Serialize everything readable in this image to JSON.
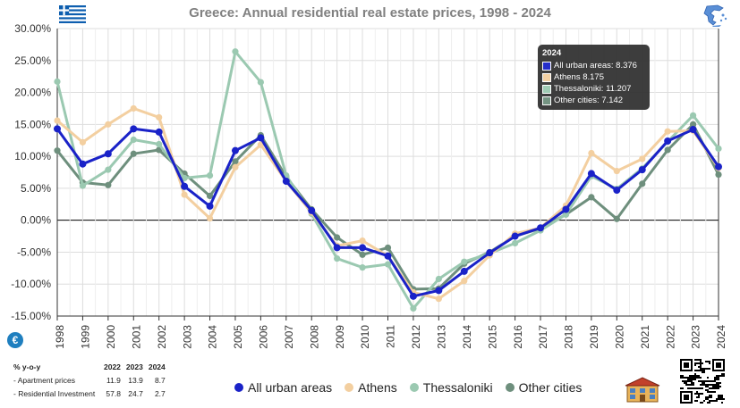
{
  "title": "Greece: Annual residential real estate prices, 1998 - 2024",
  "icons": {
    "flag": "greece-flag-icon",
    "map": "greece-map-icon",
    "info": "info-icon",
    "house": "house-icon",
    "qr": "qr-code-icon"
  },
  "info_glyph": "€",
  "chart_data": {
    "type": "line",
    "x": [
      1998,
      1999,
      2000,
      2001,
      2002,
      2003,
      2004,
      2005,
      2006,
      2007,
      2008,
      2009,
      2010,
      2011,
      2012,
      2013,
      2014,
      2015,
      2016,
      2017,
      2018,
      2019,
      2020,
      2021,
      2022,
      2023,
      2024
    ],
    "xticklabels": [
      "1998",
      "1999",
      "2000",
      "2001",
      "2002",
      "2003",
      "2004",
      "2005",
      "2006",
      "2007",
      "2008",
      "2009",
      "2010",
      "2011",
      "2012",
      "2013",
      "2014",
      "2015",
      "2016",
      "2017",
      "2018",
      "2019",
      "2020",
      "2021",
      "2022",
      "2023",
      "2024"
    ],
    "ylim": [
      -15,
      30
    ],
    "yticks": [
      -15,
      -10,
      -5,
      0,
      5,
      10,
      15,
      20,
      25,
      30
    ],
    "yticklabels": [
      "-15.00%",
      "-10.00%",
      "-5.00%",
      "0.00%",
      "5.00%",
      "10.00%",
      "15.00%",
      "20.00%",
      "25.00%",
      "30.00%"
    ],
    "grid": true,
    "legend_position": "bottom",
    "series": [
      {
        "name": "Other cities",
        "color": "#6e8f7d",
        "values": [
          10.9,
          5.9,
          5.5,
          10.4,
          11.0,
          7.3,
          3.8,
          9.2,
          13.3,
          6.8,
          1.7,
          -2.7,
          -5.4,
          -4.3,
          -10.8,
          -10.7,
          -6.8,
          -5.0,
          -2.5,
          -1.3,
          0.9,
          3.6,
          0.2,
          5.7,
          11.0,
          15.0,
          7.142
        ]
      },
      {
        "name": "Thessaloniki",
        "color": "#9bc9b1",
        "values": [
          21.7,
          5.4,
          7.9,
          12.6,
          11.9,
          6.6,
          7.0,
          26.4,
          21.6,
          7.0,
          1.0,
          -6.0,
          -7.4,
          -6.9,
          -13.8,
          -9.2,
          -6.5,
          -5.2,
          -3.6,
          -1.6,
          0.9,
          6.9,
          4.9,
          8.1,
          12.3,
          16.4,
          11.207
        ]
      },
      {
        "name": "Athens",
        "color": "#f3cfa0",
        "values": [
          15.6,
          12.2,
          15.0,
          17.5,
          16.1,
          4.0,
          0.3,
          8.3,
          11.8,
          6.1,
          1.2,
          -4.0,
          -3.2,
          -5.6,
          -11.3,
          -12.3,
          -9.5,
          -5.5,
          -2.1,
          -1.2,
          2.3,
          10.5,
          7.7,
          9.6,
          13.9,
          14.0,
          8.175
        ]
      },
      {
        "name": "All urban areas",
        "color": "#1a22c8",
        "values": [
          14.3,
          8.8,
          10.4,
          14.3,
          13.8,
          5.3,
          2.2,
          10.9,
          12.9,
          6.1,
          1.5,
          -4.3,
          -4.3,
          -5.6,
          -11.9,
          -11.0,
          -8.0,
          -5.1,
          -2.5,
          -1.2,
          1.7,
          7.3,
          4.7,
          7.9,
          12.4,
          14.2,
          8.376
        ]
      }
    ],
    "legend_order": [
      "All urban areas",
      "Athens",
      "Thessaloniki",
      "Other cities"
    ]
  },
  "tooltip": {
    "title": "2024",
    "rows": [
      {
        "label": "All urban areas: 8.376",
        "color": "#1a22c8"
      },
      {
        "label": "Athens  8.175",
        "color": "#f3cfa0"
      },
      {
        "label": "Thessaloniki: 11.207",
        "color": "#9bc9b1"
      },
      {
        "label": "Other cities: 7.142",
        "color": "#6e8f7d"
      }
    ]
  },
  "stats_table": {
    "header": [
      "% y-o-y",
      "2022",
      "2023",
      "2024"
    ],
    "rows": [
      [
        "- Apartment prices",
        "11.9",
        "13.9",
        "8.7"
      ],
      [
        "- Residential Investment",
        "57.8",
        "24.7",
        "2.7"
      ]
    ]
  }
}
